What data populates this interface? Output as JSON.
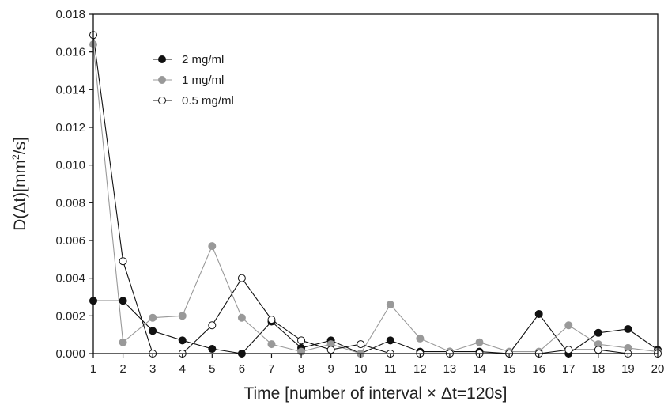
{
  "chart_data": {
    "type": "line",
    "x": [
      1,
      2,
      3,
      4,
      5,
      6,
      7,
      8,
      9,
      10,
      11,
      12,
      13,
      14,
      15,
      16,
      17,
      18,
      19,
      20
    ],
    "xlabel": "Time [number of interval × Δt=120s]",
    "ylabel_main": "D(Δt)[mm",
    "ylabel_sup": "2",
    "ylabel_tail": "/s]",
    "xlim": [
      1,
      20
    ],
    "ylim": [
      0,
      0.018
    ],
    "yticks": [
      "0.000",
      "0.002",
      "0.004",
      "0.006",
      "0.008",
      "0.010",
      "0.012",
      "0.014",
      "0.016",
      "0.018"
    ],
    "grid": false,
    "legend_position": "top-left",
    "series": [
      {
        "name": "2 mg/ml",
        "marker": "filled-black",
        "values": [
          0.0028,
          0.0028,
          0.0012,
          0.0007,
          0.00025,
          0.0,
          0.0017,
          0.0003,
          0.0007,
          0.0,
          0.0007,
          0.0001,
          0.0001,
          0.0001,
          0.0,
          0.0021,
          0.0,
          0.0011,
          0.0013,
          0.0002
        ]
      },
      {
        "name": "1 mg/ml",
        "marker": "filled-gray",
        "values": [
          0.0164,
          0.0006,
          0.0019,
          0.002,
          0.0057,
          0.0019,
          0.0005,
          0.0001,
          0.0005,
          0.0,
          0.0026,
          0.0008,
          0.0001,
          0.0006,
          0.0001,
          0.0001,
          0.0015,
          0.0005,
          0.0003,
          0.0001
        ]
      },
      {
        "name": "0.5 mg/ml",
        "marker": "open",
        "values": [
          0.0169,
          0.0049,
          0.0,
          0.0,
          0.0015,
          0.004,
          0.0018,
          0.0007,
          0.0002,
          0.0005,
          0.0,
          0.0,
          0.0,
          0.0,
          0.0,
          0.0,
          0.0002,
          0.0002,
          0.0,
          0.0
        ]
      }
    ]
  },
  "colors": {
    "series_2mg": "#111111",
    "series_1mg": "#999999",
    "series_05mg_fill": "#ffffff",
    "series_05mg_stroke": "#111111",
    "line_2mg": "#111111",
    "line_1mg": "#999999",
    "line_05mg": "#111111",
    "axis": "#111111"
  }
}
